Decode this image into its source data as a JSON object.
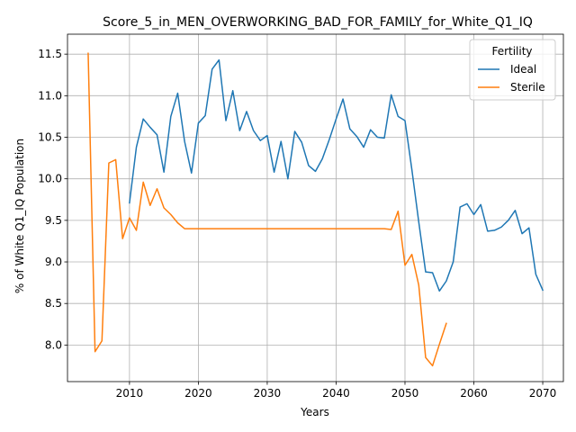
{
  "chart_data": {
    "type": "line",
    "title": "Score_5_in_MEN_OVERWORKING_BAD_FOR_FAMILY_for_White_Q1_IQ",
    "xlabel": "Years",
    "ylabel": "% of White Q1_IQ Population",
    "xlim": [
      2001,
      2073
    ],
    "ylim": [
      7.56,
      11.74
    ],
    "xticks": [
      2010,
      2020,
      2030,
      2040,
      2050,
      2060,
      2070
    ],
    "yticks": [
      8.0,
      8.5,
      9.0,
      9.5,
      10.0,
      10.5,
      11.0,
      11.5
    ],
    "grid": true,
    "legend": {
      "title": "Fertility",
      "position": "top-right"
    },
    "series": [
      {
        "name": "Ideal",
        "color": "#1f77b4",
        "points": [
          [
            2010,
            9.71
          ],
          [
            2011,
            10.38
          ],
          [
            2012,
            10.72
          ],
          [
            2013,
            10.62
          ],
          [
            2014,
            10.53
          ],
          [
            2015,
            10.08
          ],
          [
            2016,
            10.75
          ],
          [
            2017,
            11.03
          ],
          [
            2018,
            10.45
          ],
          [
            2019,
            10.07
          ],
          [
            2020,
            10.67
          ],
          [
            2021,
            10.76
          ],
          [
            2022,
            11.32
          ],
          [
            2023,
            11.43
          ],
          [
            2024,
            10.7
          ],
          [
            2025,
            11.06
          ],
          [
            2026,
            10.58
          ],
          [
            2027,
            10.81
          ],
          [
            2028,
            10.58
          ],
          [
            2029,
            10.46
          ],
          [
            2030,
            10.52
          ],
          [
            2031,
            10.08
          ],
          [
            2032,
            10.45
          ],
          [
            2033,
            10.0
          ],
          [
            2034,
            10.57
          ],
          [
            2035,
            10.44
          ],
          [
            2036,
            10.16
          ],
          [
            2037,
            10.09
          ],
          [
            2038,
            10.24
          ],
          [
            2039,
            10.47
          ],
          [
            2040,
            10.72
          ],
          [
            2041,
            10.96
          ],
          [
            2042,
            10.6
          ],
          [
            2043,
            10.51
          ],
          [
            2044,
            10.38
          ],
          [
            2045,
            10.59
          ],
          [
            2046,
            10.5
          ],
          [
            2047,
            10.49
          ],
          [
            2048,
            11.01
          ],
          [
            2049,
            10.75
          ],
          [
            2050,
            10.7
          ],
          [
            2051,
            10.11
          ],
          [
            2052,
            9.48
          ],
          [
            2053,
            8.88
          ],
          [
            2054,
            8.87
          ],
          [
            2055,
            8.65
          ],
          [
            2056,
            8.77
          ],
          [
            2057,
            9.0
          ],
          [
            2058,
            9.66
          ],
          [
            2059,
            9.7
          ],
          [
            2060,
            9.57
          ],
          [
            2061,
            9.69
          ],
          [
            2062,
            9.37
          ],
          [
            2063,
            9.38
          ],
          [
            2064,
            9.42
          ],
          [
            2065,
            9.5
          ],
          [
            2066,
            9.62
          ],
          [
            2067,
            9.34
          ],
          [
            2068,
            9.41
          ],
          [
            2069,
            8.85
          ],
          [
            2070,
            8.66
          ]
        ]
      },
      {
        "name": "Sterile",
        "color": "#ff7f0e",
        "points": [
          [
            2004,
            11.51
          ],
          [
            2005,
            7.92
          ],
          [
            2006,
            8.05
          ],
          [
            2007,
            10.19
          ],
          [
            2008,
            10.23
          ],
          [
            2009,
            9.28
          ],
          [
            2010,
            9.53
          ],
          [
            2011,
            9.38
          ],
          [
            2012,
            9.96
          ],
          [
            2013,
            9.68
          ],
          [
            2014,
            9.88
          ],
          [
            2015,
            9.65
          ],
          [
            2016,
            9.57
          ],
          [
            2017,
            9.47
          ],
          [
            2018,
            9.4
          ],
          [
            2019,
            9.4
          ],
          [
            2020,
            9.4
          ],
          [
            2025,
            9.4
          ],
          [
            2030,
            9.4
          ],
          [
            2035,
            9.4
          ],
          [
            2040,
            9.4
          ],
          [
            2045,
            9.4
          ],
          [
            2047,
            9.4
          ],
          [
            2048,
            9.39
          ],
          [
            2049,
            9.61
          ],
          [
            2050,
            8.96
          ],
          [
            2051,
            9.09
          ],
          [
            2052,
            8.72
          ],
          [
            2053,
            7.85
          ],
          [
            2054,
            7.75
          ],
          [
            2055,
            8.01
          ],
          [
            2056,
            8.26
          ]
        ]
      }
    ]
  }
}
